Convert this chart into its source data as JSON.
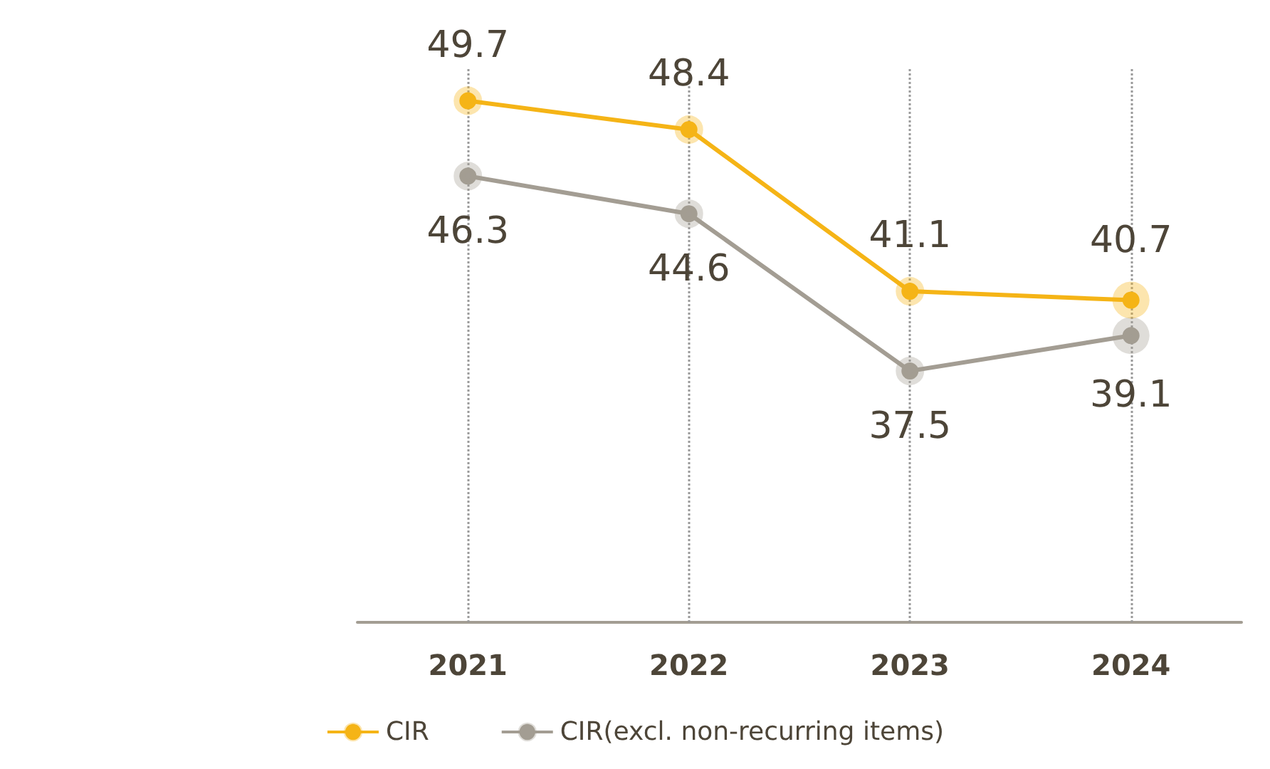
{
  "chart_data": {
    "type": "line",
    "categories": [
      "2021",
      "2022",
      "2023",
      "2024"
    ],
    "series": [
      {
        "name": "CIR",
        "color": "#f5b416",
        "values": [
          49.7,
          48.4,
          41.1,
          40.7
        ]
      },
      {
        "name": "CIR(excl. non-recurring items)",
        "color": "#a39d93",
        "values": [
          46.3,
          44.6,
          37.5,
          39.1
        ]
      }
    ],
    "data_labels": true,
    "marker": "circle",
    "grid": "x",
    "legend": "bottom"
  }
}
